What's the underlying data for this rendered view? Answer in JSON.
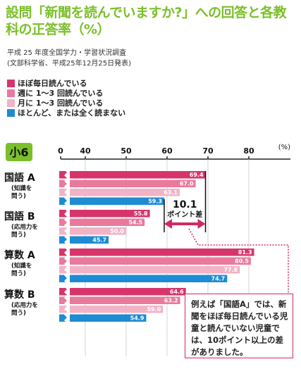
{
  "title": "設問「新聞を読んでいますか?」への回答と各教科の正答率（%）",
  "source_line1": "平成 25 年度全国学力・学習状況調査",
  "source_line2": "(文部科学省、平成25年12月25日発表)",
  "colors": {
    "title": "#7bbf2a",
    "series": [
      "#d6356b",
      "#e97a9c",
      "#f2b3c7",
      "#1e8bd2"
    ],
    "accent": "#d12a5c"
  },
  "grade_badge": "小6",
  "gap_annotation": {
    "value": "10.1",
    "label": "ポイント差"
  },
  "note": "例えば「国語A」では、新聞をほぼ毎日読んでいる児童と読んでいない児童では、10ポイント以上の差がありました。",
  "chart_data": {
    "type": "bar",
    "orientation": "horizontal",
    "unit": "(%)",
    "xlim": [
      0,
      80
    ],
    "ticks": [
      0,
      40,
      50,
      60,
      70,
      80
    ],
    "axis_break": true,
    "grid": true,
    "legend_position": "top-left",
    "series_names": [
      "ほぼ毎日読んでいる",
      "週に 1～3 回読んでいる",
      "月に 1～3 回読んでいる",
      "ほとんど、または全く読まない"
    ],
    "groups": [
      {
        "title": "国語 A",
        "sub": [
          "(知識を",
          "問う)"
        ],
        "values": [
          69.4,
          67.0,
          63.1,
          59.3
        ]
      },
      {
        "title": "国語 B",
        "sub": [
          "(応用力を",
          "問う)"
        ],
        "values": [
          55.8,
          54.5,
          50.0,
          45.7
        ]
      },
      {
        "title": "算数 A",
        "sub": [
          "(知識を",
          "問う)"
        ],
        "values": [
          81.3,
          80.5,
          77.8,
          74.7
        ]
      },
      {
        "title": "算数 B",
        "sub": [
          "(応用力を",
          "問う)"
        ],
        "values": [
          64.6,
          63.2,
          59.0,
          54.9
        ]
      }
    ]
  }
}
